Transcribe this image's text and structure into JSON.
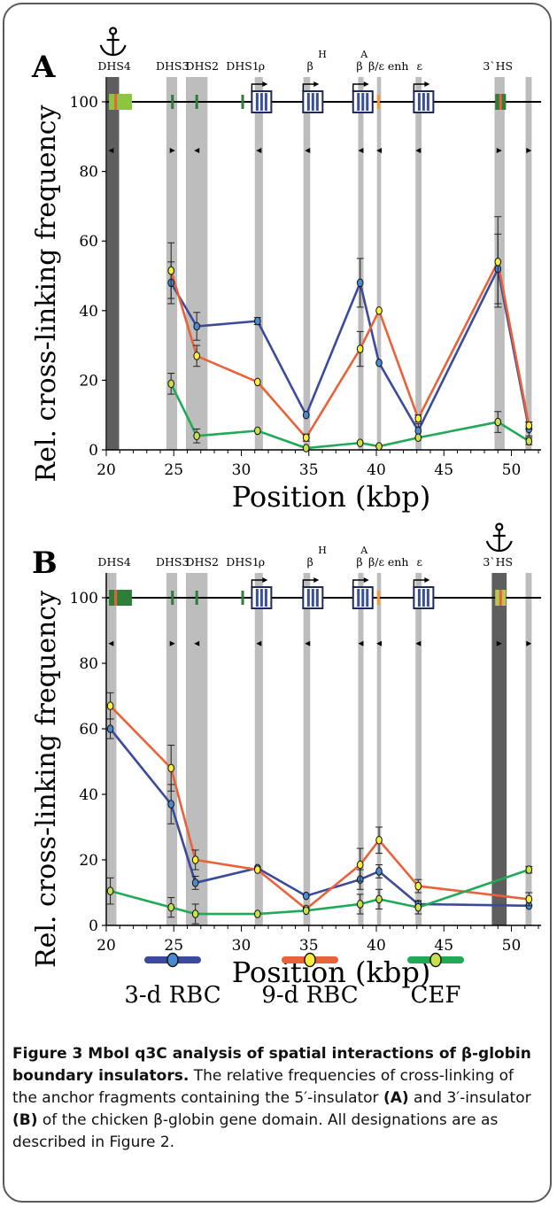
{
  "colors": {
    "rbc3": "#3b4a9c",
    "rbc9": "#e8623a",
    "cef": "#20a957",
    "yellow": "#f7ef3a",
    "gray": "#bdbdbd",
    "anchor": "#5e5e5e"
  },
  "chart_data": [
    {
      "panel_label": "A",
      "type": "line",
      "ylabel": "Rel. cross-linking frequency",
      "xlabel": "Position (kbp)",
      "xlim": [
        20,
        52
      ],
      "ylim": [
        0,
        100
      ],
      "xticks": [
        "20",
        "25",
        "30",
        "35",
        "40",
        "45",
        "50"
      ],
      "yticks": [
        "0",
        "20",
        "40",
        "60",
        "80",
        "100"
      ],
      "anchor_icon": "anchor-icon",
      "anchor_position": "DHS4",
      "annotations": [
        "DHS4",
        "DHS3",
        "DHS2",
        "DHS1",
        "ρ",
        "β",
        "H",
        "β",
        "A",
        "β/ε enh",
        "ε",
        "3`HS"
      ],
      "series": [
        {
          "name": "3-d RBC",
          "color": "#3b4a9c",
          "x": [
            24.8,
            26.7,
            31.2,
            34.8,
            38.8,
            40.2,
            43.1,
            49.0,
            51.3
          ],
          "y": [
            48,
            35.5,
            37,
            10,
            48,
            25,
            5.5,
            52,
            6
          ],
          "err": [
            6,
            4,
            1,
            0,
            7,
            0,
            2,
            10,
            2
          ]
        },
        {
          "name": "9-d RBC",
          "color": "#e8623a",
          "x": [
            24.8,
            26.7,
            31.2,
            34.8,
            38.8,
            40.2,
            43.1,
            49.0,
            51.3
          ],
          "y": [
            51.5,
            27,
            19.5,
            3.5,
            29,
            40,
            9,
            54,
            7
          ],
          "err": [
            8,
            3,
            0,
            1,
            5,
            0,
            1,
            13,
            1
          ]
        },
        {
          "name": "CEF",
          "color": "#20a957",
          "x": [
            24.8,
            26.7,
            31.2,
            34.8,
            38.8,
            40.2,
            43.1,
            49.0,
            51.3
          ],
          "y": [
            19,
            4,
            5.5,
            0.5,
            2,
            1,
            3.5,
            8,
            2.5
          ],
          "err": [
            3,
            2,
            0,
            0,
            0,
            0,
            0,
            3,
            1
          ]
        }
      ]
    },
    {
      "panel_label": "B",
      "type": "line",
      "ylabel": "Rel. cross-linking frequency",
      "xlabel": "Position (kbp)",
      "xlim": [
        20,
        52
      ],
      "ylim": [
        0,
        100
      ],
      "xticks": [
        "20",
        "25",
        "30",
        "35",
        "40",
        "45",
        "50"
      ],
      "yticks": [
        "0",
        "20",
        "40",
        "60",
        "80",
        "100"
      ],
      "anchor_icon": "anchor-icon",
      "anchor_position": "3`HS",
      "annotations": [
        "DHS4",
        "DHS3",
        "DHS2",
        "DHS1",
        "ρ",
        "β",
        "H",
        "β",
        "A",
        "β/ε enh",
        "ε",
        "3`HS"
      ],
      "series": [
        {
          "name": "3-d RBC",
          "color": "#3b4a9c",
          "x": [
            20.3,
            24.8,
            26.6,
            31.2,
            34.8,
            38.8,
            40.2,
            43.1,
            51.3
          ],
          "y": [
            60,
            37,
            13,
            17.5,
            9,
            14,
            16.5,
            6.5,
            6
          ],
          "err": [
            3,
            6,
            2,
            0,
            0,
            3,
            2,
            1,
            0
          ]
        },
        {
          "name": "9-d RBC",
          "color": "#e8623a",
          "x": [
            20.3,
            24.8,
            26.6,
            31.2,
            34.8,
            38.8,
            40.2,
            43.1,
            51.3
          ],
          "y": [
            67,
            48,
            20,
            17,
            5,
            18.5,
            26,
            12,
            8
          ],
          "err": [
            4,
            7,
            3,
            0,
            0,
            5,
            4,
            2,
            2
          ]
        },
        {
          "name": "CEF",
          "color": "#20a957",
          "x": [
            20.3,
            24.8,
            26.6,
            31.2,
            34.8,
            38.8,
            40.2,
            43.1,
            51.3
          ],
          "y": [
            10.5,
            5.5,
            3.5,
            3.5,
            4.5,
            6.5,
            8,
            5.5,
            17
          ],
          "err": [
            4,
            3,
            3,
            0,
            0,
            3,
            3,
            2,
            1
          ]
        }
      ]
    }
  ],
  "legend": [
    {
      "label": "3-d RBC",
      "color": "#3b4a9c"
    },
    {
      "label": "9-d RBC",
      "color": "#e8623a"
    },
    {
      "label": "CEF",
      "color": "#20a957"
    }
  ],
  "caption": {
    "bold": "Figure 3 MboI q3C analysis of spatial interactions of β-globin boundary insulators.",
    "text1": " The relative frequencies of cross-linking of the anchor fragments containing the 5′-insulator ",
    "bold_a": "(A)",
    "text2": " and 3′-insulator ",
    "bold_b": "(B)",
    "text3": " of the chicken β-globin gene domain. All designations are as described in Figure 2."
  }
}
